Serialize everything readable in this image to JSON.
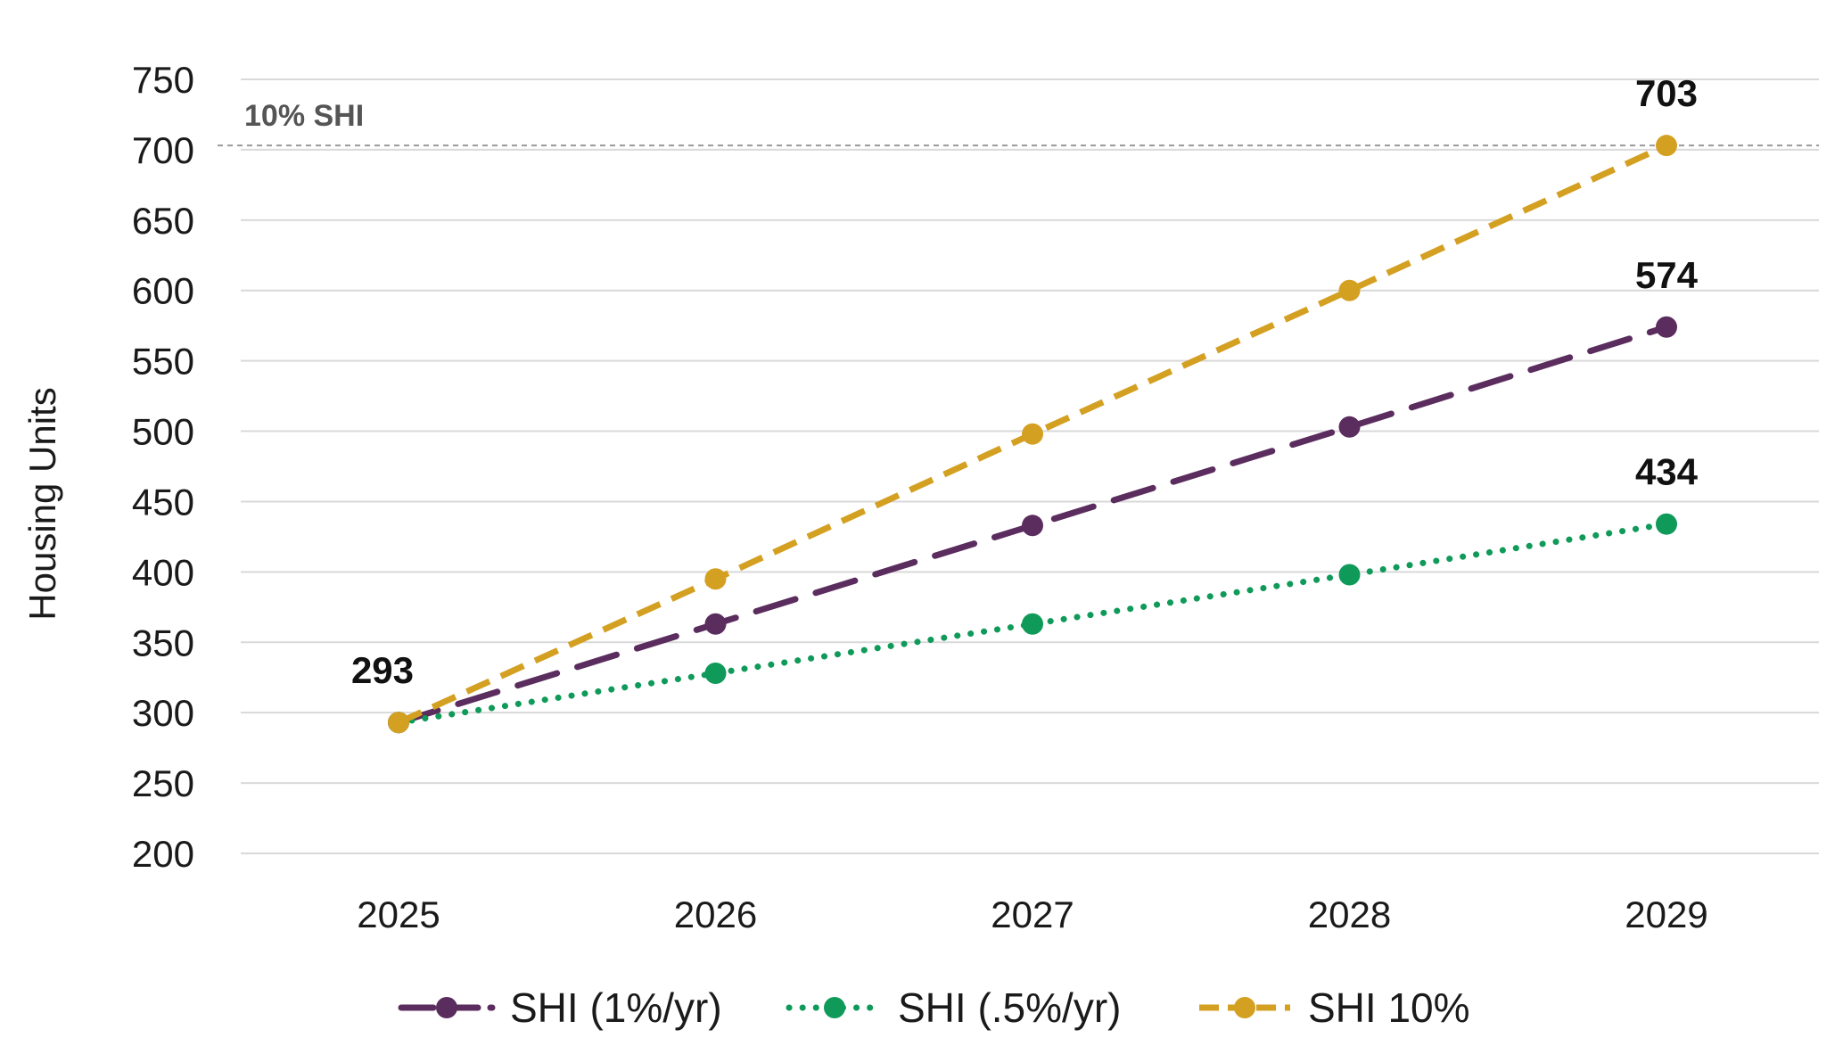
{
  "chart_data": {
    "type": "line",
    "title": "",
    "xlabel": "",
    "ylabel": "Housing Units",
    "ylim": [
      200,
      750
    ],
    "yticks": [
      200,
      250,
      300,
      350,
      400,
      450,
      500,
      550,
      600,
      650,
      700,
      750
    ],
    "categories": [
      "2025",
      "2026",
      "2027",
      "2028",
      "2029"
    ],
    "grid": "horizontal",
    "legend_position": "bottom",
    "reference_line": {
      "label": "10% SHI",
      "value": 703,
      "color": "#999999"
    },
    "series": [
      {
        "name": "SHI (1%/yr)",
        "values": [
          293,
          363,
          433,
          503,
          574
        ],
        "color": "#5b2c5e",
        "style": "long-dash"
      },
      {
        "name": "SHI (.5%/yr)",
        "values": [
          293,
          328,
          363,
          398,
          434
        ],
        "color": "#0f9a5a",
        "style": "dotted"
      },
      {
        "name": "SHI 10%",
        "values": [
          293,
          395,
          498,
          600,
          703
        ],
        "color": "#d4a022",
        "style": "dashed"
      }
    ],
    "data_labels": [
      {
        "category": "2025",
        "value": 293,
        "text": "293"
      },
      {
        "category": "2029",
        "value": 703,
        "text": "703"
      },
      {
        "category": "2029",
        "value": 574,
        "text": "574"
      },
      {
        "category": "2029",
        "value": 434,
        "text": "434"
      }
    ]
  }
}
